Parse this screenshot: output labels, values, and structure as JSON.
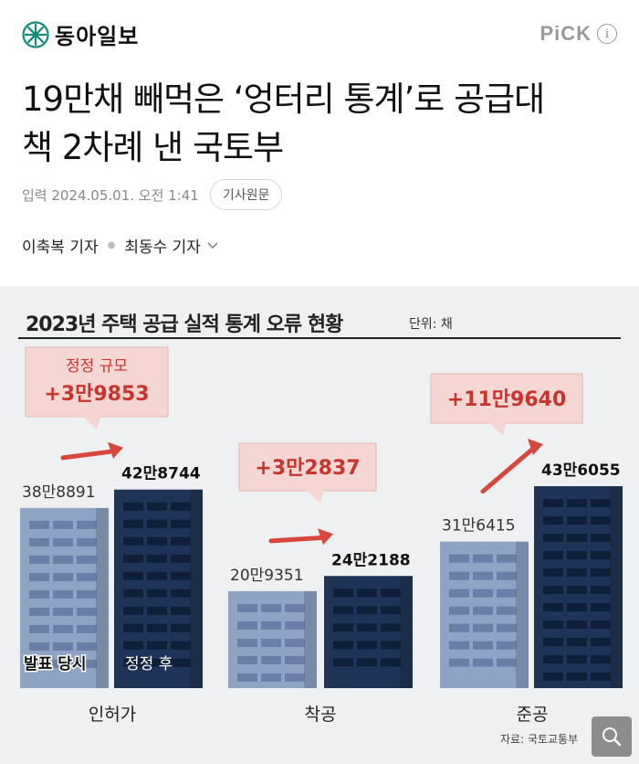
{
  "header": {
    "logo_text": "동아일보",
    "pick_label": "PiCK",
    "info_glyph": "i"
  },
  "article": {
    "headline_line1": "19만채 빼먹은 ‘엉터리 통계’로 공급대",
    "headline_line2": "책 2차례 낸 국토부",
    "date": "입력 2024.05.01. 오전 1:41",
    "original_button": "기사원문",
    "authors": [
      "이축복 기자",
      "최동수 기자"
    ]
  },
  "graphic": {
    "title": "2023년 주택 공급 실적 통계 오류 현황",
    "unit": "단위: 채",
    "source": "자료: 국토교통부",
    "legend_before": "발표 당시",
    "legend_after": "정정 후",
    "callout_caption": "정정 규모",
    "colors": {
      "before_bar": "#8fa3c4",
      "after_bar": "#1f3558",
      "callout_bg": "#f6d6d2",
      "callout_text": "#c8342e",
      "arrow": "#d9473c"
    }
  },
  "chart_data": {
    "type": "bar",
    "title": "2023년 주택 공급 실적 통계 오류 현황",
    "unit": "단위: 채",
    "categories": [
      "인허가",
      "착공",
      "준공"
    ],
    "series": [
      {
        "name": "발표 당시",
        "values": [
          388891,
          209351,
          316415
        ],
        "labels": [
          "38만8891",
          "20만9351",
          "31만6415"
        ]
      },
      {
        "name": "정정 후",
        "values": [
          428744,
          242188,
          436055
        ],
        "labels": [
          "42만8744",
          "24만2188",
          "43만6055"
        ]
      }
    ],
    "differences": [
      "+3만9853",
      "+3만2837",
      "+11만9640"
    ],
    "legend": "inside-bars"
  },
  "icons": {
    "zoom": "zoom-search-icon",
    "chevron": "chevron-down-icon"
  }
}
